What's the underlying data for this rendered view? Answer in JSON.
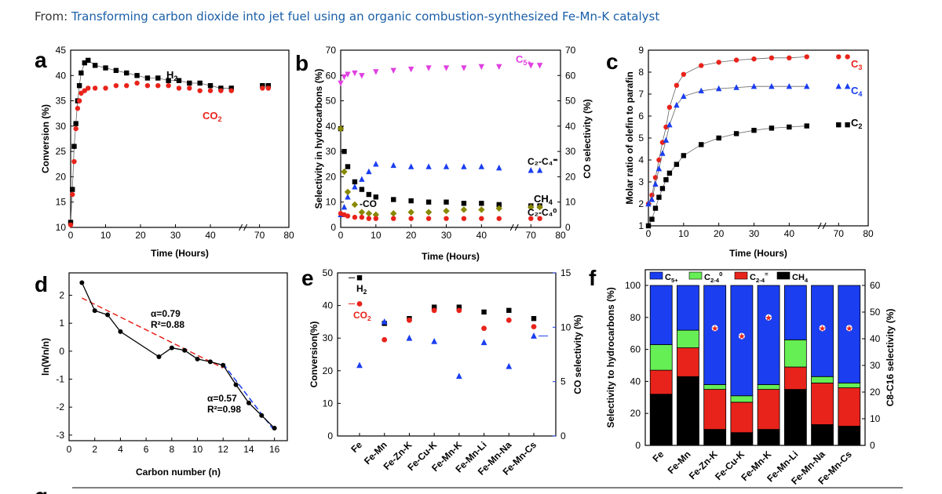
{
  "header": {
    "prefix": "From:",
    "link": "Transforming carbon dioxide into jet fuel using an organic combustion-synthesized Fe-Mn-K catalyst"
  },
  "panels": {
    "a": "a",
    "b": "b",
    "c": "c",
    "d": "d",
    "e": "e",
    "f": "f",
    "g": "g"
  },
  "chart_data": [
    {
      "id": "a",
      "type": "scatter",
      "xlabel": "Time (Hours)",
      "ylabel": "Conversion (%)",
      "xlim": [
        0,
        80
      ],
      "ylim": [
        10,
        45
      ],
      "xticks": [
        "0",
        "10",
        "20",
        "30",
        "40",
        "70",
        "80"
      ],
      "yticks": [
        "10",
        "15",
        "20",
        "25",
        "30",
        "35",
        "40",
        "45"
      ],
      "series": [
        {
          "name": "H2",
          "label": "H",
          "sub": "2",
          "color": "#000000",
          "x": [
            0,
            0.5,
            1,
            1.5,
            2,
            2.5,
            3,
            4,
            5,
            7,
            10,
            13,
            16,
            19,
            22,
            25,
            28,
            31,
            34,
            37,
            40,
            43,
            46,
            71,
            73
          ],
          "y": [
            11,
            17.5,
            26,
            30.5,
            35,
            38,
            40.5,
            42.5,
            43,
            42,
            41.5,
            41,
            40.5,
            40,
            39.5,
            39.5,
            39,
            39,
            38.5,
            38.5,
            38,
            37.5,
            37.5,
            38,
            38
          ]
        },
        {
          "name": "CO2",
          "label": "CO",
          "sub": "2",
          "color": "#e8231b",
          "x": [
            0,
            0.5,
            1,
            1.5,
            2,
            2.5,
            3,
            4,
            5,
            7,
            10,
            13,
            16,
            19,
            22,
            25,
            28,
            31,
            34,
            37,
            40,
            43,
            46,
            71,
            73
          ],
          "y": [
            10.5,
            16.5,
            23,
            29.5,
            33.5,
            35,
            36.5,
            37,
            37.5,
            37.5,
            37.5,
            38,
            38,
            38.5,
            38,
            38,
            38,
            37.5,
            37.5,
            37,
            37,
            37,
            37,
            37.5,
            37.5
          ]
        }
      ]
    },
    {
      "id": "b",
      "type": "scatter",
      "xlabel": "Time (Hours)",
      "ylabel": "Selectivity in hydrocarbons (%)",
      "y2label": "CO selectivity (%)",
      "xlim": [
        0,
        80
      ],
      "ylim": [
        0,
        70
      ],
      "y2lim": [
        0,
        70
      ],
      "xticks": [
        "0",
        "10",
        "20",
        "30",
        "40",
        "70",
        "80"
      ],
      "yticks": [
        "0",
        "10",
        "20",
        "30",
        "40",
        "50",
        "60",
        "70"
      ],
      "series": [
        {
          "name": "C5+",
          "label": "C",
          "sub": "5+",
          "color": "#e040e0",
          "x": [
            0,
            1,
            2,
            4,
            6,
            10,
            15,
            20,
            25,
            30,
            35,
            40,
            45,
            70,
            73
          ],
          "y": [
            57,
            59.5,
            60.5,
            61,
            60,
            61.5,
            62,
            62.5,
            63,
            63,
            63,
            63.5,
            63.5,
            64,
            64
          ]
        },
        {
          "name": "C2-C4=",
          "label": "C₂-C₄⁼",
          "color": "#1a3ef0",
          "x": [
            0,
            1,
            2,
            4,
            6,
            8,
            10,
            15,
            20,
            25,
            30,
            35,
            40,
            45,
            70,
            73
          ],
          "y": [
            5,
            8,
            12,
            16,
            19,
            22,
            25,
            24.5,
            24,
            24,
            24,
            24,
            24,
            23.5,
            22.5,
            22.5
          ]
        },
        {
          "name": "CH4",
          "label": "CH",
          "sub": "4",
          "color": "#000000",
          "x": [
            0,
            1,
            2,
            4,
            6,
            8,
            10,
            15,
            20,
            25,
            30,
            35,
            40,
            45,
            70,
            73
          ],
          "y": [
            39,
            30,
            24,
            18,
            15,
            13,
            12,
            11,
            10.5,
            10,
            10,
            9.5,
            9.5,
            9,
            8.5,
            8.5
          ]
        },
        {
          "name": "CO",
          "label": "CO",
          "color": "#888800",
          "x": [
            0,
            1,
            2,
            4,
            6,
            8,
            10,
            15,
            20,
            25,
            30,
            35,
            40,
            45,
            70,
            73
          ],
          "y": [
            39,
            22,
            14,
            9,
            6,
            5.5,
            5,
            5.5,
            6,
            6,
            6.5,
            7,
            7,
            7.5,
            8,
            8
          ]
        },
        {
          "name": "C2-C40",
          "label": "C₂-C₄⁰",
          "color": "#e8231b",
          "x": [
            0,
            1,
            2,
            4,
            6,
            8,
            10,
            15,
            20,
            25,
            30,
            35,
            40,
            45,
            70,
            73
          ],
          "y": [
            5.5,
            5,
            4.5,
            4,
            4,
            3.5,
            3.5,
            3.5,
            3.5,
            3.5,
            3.5,
            3.5,
            3.5,
            3.5,
            3.5,
            3.5
          ]
        }
      ]
    },
    {
      "id": "c",
      "type": "scatter",
      "xlabel": "Time (Hours)",
      "ylabel": "Molar ratio of olefin to parafin",
      "xlim": [
        0,
        80
      ],
      "ylim": [
        1,
        9
      ],
      "xticks": [
        "0",
        "10",
        "20",
        "30",
        "40",
        "70",
        "80"
      ],
      "yticks": [
        "1",
        "2",
        "3",
        "4",
        "5",
        "6",
        "7",
        "8",
        "9"
      ],
      "series": [
        {
          "name": "C3",
          "label": "C",
          "sub": "3",
          "color": "#e8231b",
          "x": [
            0,
            1,
            2,
            3,
            4,
            5,
            6,
            8,
            10,
            15,
            20,
            25,
            30,
            35,
            40,
            45,
            70,
            73
          ],
          "y": [
            2,
            2.4,
            3.2,
            4,
            4.8,
            5.5,
            6.4,
            7.4,
            7.9,
            8.3,
            8.45,
            8.55,
            8.6,
            8.65,
            8.65,
            8.7,
            8.7,
            8.7
          ]
        },
        {
          "name": "C4",
          "label": "C",
          "sub": "4",
          "color": "#1a3ef0",
          "x": [
            0,
            1,
            2,
            3,
            4,
            5,
            6,
            8,
            10,
            15,
            20,
            25,
            30,
            35,
            40,
            45,
            70,
            73
          ],
          "y": [
            2,
            2.2,
            2.9,
            3.6,
            4.3,
            4.9,
            5.6,
            6.5,
            6.9,
            7.15,
            7.25,
            7.3,
            7.35,
            7.35,
            7.35,
            7.35,
            7.35,
            7.35
          ]
        },
        {
          "name": "C2",
          "label": "C",
          "sub": "2",
          "color": "#000000",
          "x": [
            0,
            1,
            2,
            3,
            4,
            5,
            6,
            8,
            10,
            15,
            20,
            25,
            30,
            35,
            40,
            45,
            70,
            73
          ],
          "y": [
            1,
            1.3,
            1.8,
            2.3,
            2.7,
            3.1,
            3.4,
            3.8,
            4.2,
            4.7,
            5.0,
            5.2,
            5.35,
            5.45,
            5.5,
            5.55,
            5.6,
            5.6
          ]
        }
      ]
    },
    {
      "id": "d",
      "type": "line",
      "xlabel": "Carbon number (n)",
      "ylabel": "ln(Wn/n)",
      "xlim": [
        0,
        17
      ],
      "ylim": [
        -3.2,
        2.8
      ],
      "xticks": [
        "0",
        "2",
        "4",
        "6",
        "8",
        "10",
        "12",
        "14",
        "16"
      ],
      "yticks": [
        "-3",
        "-2",
        "-1",
        "0",
        "1",
        "2"
      ],
      "x": [
        1,
        2,
        3,
        4,
        7,
        8,
        9,
        10,
        11,
        12,
        13,
        14,
        15,
        16
      ],
      "y": [
        2.45,
        1.45,
        1.3,
        0.7,
        -0.2,
        0.12,
        0.03,
        -0.28,
        -0.38,
        -0.5,
        -1.2,
        -1.85,
        -2.3,
        -2.75
      ],
      "annotations": [
        {
          "text": "α=0.79",
          "color": "#e8231b"
        },
        {
          "text": "R²=0.88",
          "color": "#e8231b"
        },
        {
          "text": "α=0.57",
          "color": "#1a3ef0"
        },
        {
          "text": "R²=0.98",
          "color": "#1a3ef0"
        }
      ]
    },
    {
      "id": "e",
      "type": "scatter",
      "xlabel": "",
      "ylabel": "Conversion(%)",
      "y2label": "CO selectivity (%)",
      "ylim": [
        0,
        50
      ],
      "y2lim": [
        0,
        15
      ],
      "categories": [
        "Fe",
        "Fe-Mn",
        "Fe-Zn-K",
        "Fe-Cu-K",
        "Fe-Mn-K",
        "Fe-Mn-Li",
        "Fe-Mn-Na",
        "Fe-Mn-Cs"
      ],
      "yticks": [
        "0",
        "10",
        "20",
        "30",
        "40",
        "50"
      ],
      "y2ticks": [
        "0",
        "5",
        "10",
        "15"
      ],
      "series": [
        {
          "name": "H2",
          "label": "H",
          "sub": "2",
          "color": "#000000",
          "values": [
            48.5,
            34.5,
            36,
            39.5,
            39.5,
            38,
            38.5,
            36
          ]
        },
        {
          "name": "CO2",
          "label": "CO",
          "sub": "2",
          "color": "#e8231b",
          "values": [
            40.5,
            29.5,
            35.5,
            38.5,
            38.5,
            33,
            35.5,
            33.5
          ]
        },
        {
          "name": "CO",
          "label": "",
          "color": "#1a3ef0",
          "axis": "y2",
          "values": [
            6.5,
            10.5,
            9,
            8.7,
            5.5,
            8.6,
            6.4,
            9.2
          ]
        }
      ]
    },
    {
      "id": "f",
      "type": "bar",
      "ylabel": "Selectivity to hydrocarbons (%)",
      "y2label": "C8-C16 selectivity (%)",
      "ylim": [
        0,
        100
      ],
      "y2lim": [
        0,
        60
      ],
      "categories": [
        "Fe",
        "Fe-Mn",
        "Fe-Zn-K",
        "Fe-Cu-K",
        "Fe-Mn-K",
        "Fe-Mn-Li",
        "Fe-Mn-Na",
        "Fe-Mn-Cs"
      ],
      "yticks": [
        "0",
        "20",
        "40",
        "60",
        "80",
        "100"
      ],
      "y2ticks": [
        "0",
        "10",
        "20",
        "30",
        "40",
        "50",
        "60"
      ],
      "legend": [
        {
          "name": "C5+",
          "label": "C",
          "sub": "5+",
          "color": "#1a3ef0"
        },
        {
          "name": "C2-40",
          "label": "C",
          "sub": "2-4",
          "sup": "0",
          "color": "#66ee55"
        },
        {
          "name": "C2-4=",
          "label": "C",
          "sub": "2-4",
          "sup": "=",
          "color": "#e8231b"
        },
        {
          "name": "CH4",
          "label": "CH",
          "sub": "4",
          "color": "#000000"
        }
      ],
      "series": [
        {
          "name": "CH4",
          "color": "#000000",
          "values": [
            32,
            43,
            10,
            8,
            10,
            35,
            13,
            12
          ]
        },
        {
          "name": "C2-4=",
          "color": "#e8231b",
          "values": [
            15,
            18,
            25,
            19,
            25,
            14,
            26,
            24
          ]
        },
        {
          "name": "C2-40",
          "color": "#66ee55",
          "values": [
            16,
            11,
            3,
            4,
            3,
            17,
            4,
            3
          ]
        },
        {
          "name": "C5+",
          "color": "#1a3ef0",
          "values": [
            37,
            28,
            62,
            69,
            62,
            34,
            57,
            61
          ]
        }
      ],
      "c8c16": [
        null,
        null,
        44,
        41,
        48,
        null,
        44,
        44
      ]
    }
  ]
}
